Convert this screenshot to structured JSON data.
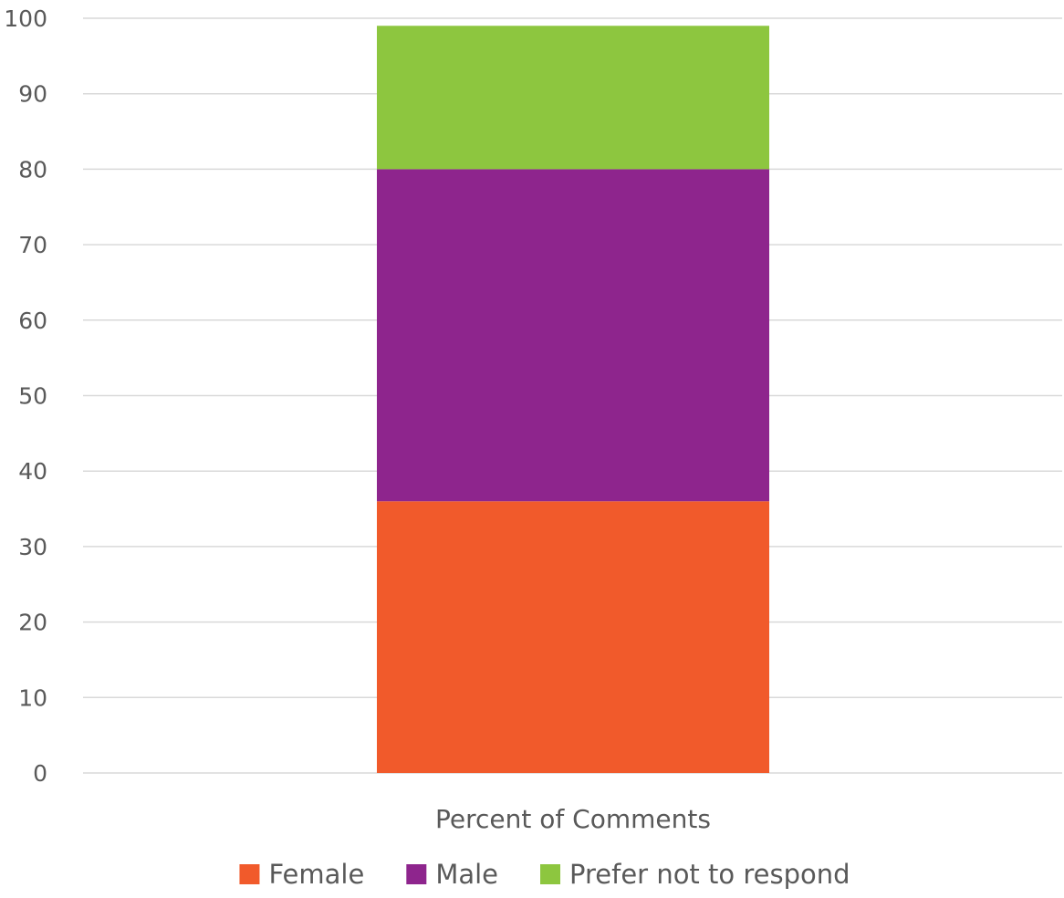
{
  "chart_data": {
    "type": "bar",
    "stacked": true,
    "categories": [
      "Percent of Comments"
    ],
    "series": [
      {
        "name": "Female",
        "values": [
          36
        ],
        "color": "#f15a2b"
      },
      {
        "name": "Male",
        "values": [
          44
        ],
        "color": "#8e258d"
      },
      {
        "name": "Prefer not to respond",
        "values": [
          19
        ],
        "color": "#8dc63f"
      }
    ],
    "xlabel": "",
    "ylabel": "",
    "ylim": [
      0,
      100
    ],
    "yticks": [
      0,
      10,
      20,
      30,
      40,
      50,
      60,
      70,
      80,
      90,
      100
    ],
    "grid": true,
    "gridline_color": "#d9d9d9",
    "legend_position": "bottom"
  }
}
